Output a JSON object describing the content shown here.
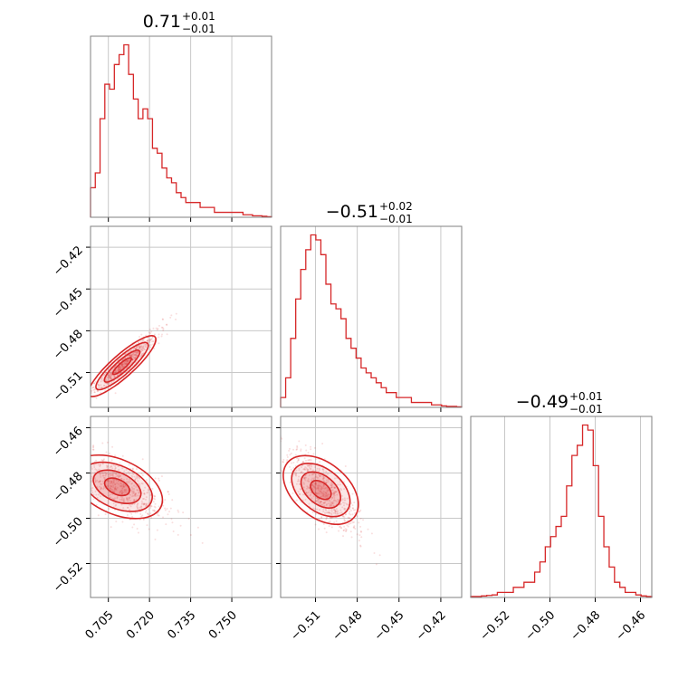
{
  "chart_data": {
    "type": "corner",
    "color": "#d62728",
    "grid": true,
    "parameters": [
      {
        "title": "0.71",
        "upper": "+0.01",
        "lower": "−0.01",
        "range": [
          0.6985,
          0.7645
        ]
      },
      {
        "title": "−0.51",
        "upper": "+0.02",
        "lower": "−0.01",
        "range": [
          -0.535,
          -0.405
        ]
      },
      {
        "title": "−0.49",
        "upper": "+0.01",
        "lower": "−0.01",
        "range": [
          -0.535,
          -0.455
        ]
      }
    ],
    "ticks": {
      "x0": [
        {
          "value": 0.705,
          "label": "0.705"
        },
        {
          "value": 0.72,
          "label": "0.720"
        },
        {
          "value": 0.735,
          "label": "0.735"
        },
        {
          "value": 0.75,
          "label": "0.750"
        }
      ],
      "x1": [
        {
          "value": -0.51,
          "label": "−0.51"
        },
        {
          "value": -0.48,
          "label": "−0.48"
        },
        {
          "value": -0.45,
          "label": "−0.45"
        },
        {
          "value": -0.42,
          "label": "−0.42"
        }
      ],
      "x2": [
        {
          "value": -0.52,
          "label": "−0.52"
        },
        {
          "value": -0.5,
          "label": "−0.50"
        },
        {
          "value": -0.48,
          "label": "−0.48"
        },
        {
          "value": -0.46,
          "label": "−0.46"
        }
      ],
      "y1": [
        {
          "value": -0.42,
          "label": "−0.42"
        },
        {
          "value": -0.45,
          "label": "−0.45"
        },
        {
          "value": -0.48,
          "label": "−0.48"
        },
        {
          "value": -0.51,
          "label": "−0.51"
        }
      ],
      "y2": [
        {
          "value": -0.46,
          "label": "−0.46"
        },
        {
          "value": -0.48,
          "label": "−0.48"
        },
        {
          "value": -0.5,
          "label": "−0.50"
        },
        {
          "value": -0.52,
          "label": "−0.52"
        }
      ]
    },
    "histograms": [
      {
        "param": 0,
        "heights": [
          6,
          9,
          20,
          27,
          26,
          31,
          33,
          35,
          29,
          24,
          20,
          22,
          20,
          14,
          13,
          10,
          8,
          7,
          5,
          4,
          3,
          3,
          3,
          2,
          2,
          2,
          1,
          1,
          1,
          1,
          1,
          1,
          0.5,
          0.5,
          0.3,
          0.3,
          0.2,
          0.1
        ]
      },
      {
        "param": 1,
        "heights": [
          2,
          6,
          14,
          22,
          28,
          32,
          35,
          34,
          31,
          25,
          21,
          20,
          18,
          14,
          12,
          10,
          8,
          7,
          6,
          5,
          4,
          3,
          3,
          2,
          2,
          2,
          1,
          1,
          1,
          1,
          0.5,
          0.5,
          0.3,
          0.2,
          0.2,
          0.1
        ]
      },
      {
        "param": 2,
        "heights": [
          0.2,
          0.2,
          0.3,
          0.4,
          0.5,
          1,
          1,
          1,
          2,
          2,
          3,
          3,
          5,
          7,
          10,
          12,
          14,
          16,
          22,
          28,
          30,
          34,
          33,
          26,
          16,
          10,
          6,
          3,
          2,
          1,
          1,
          0.5,
          0.3,
          0.2
        ]
      }
    ],
    "scatter_panels": [
      {
        "x": 0,
        "y": 1,
        "center": [
          0.708,
          -0.508
        ],
        "slope": 1.75,
        "spread": [
          0.006,
          0.004
        ],
        "levels": [
          0.55,
          1.05,
          1.55,
          2.0
        ]
      },
      {
        "x": 0,
        "y": 2,
        "center": [
          0.706,
          -0.485
        ],
        "slope": -0.55,
        "spread": [
          0.008,
          0.006
        ],
        "levels": [
          0.55,
          1.05,
          1.55,
          2.0
        ]
      },
      {
        "x": 1,
        "y": 2,
        "center": [
          -0.51,
          -0.486
        ],
        "slope": -0.5,
        "spread": [
          0.012,
          0.006
        ],
        "levels": [
          0.55,
          1.05,
          1.55,
          2.0
        ]
      }
    ]
  }
}
